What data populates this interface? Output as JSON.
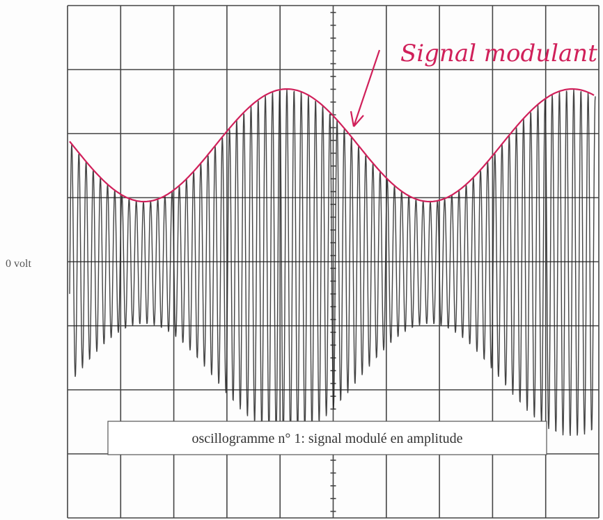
{
  "annotation": "Signal modulant",
  "axis_label": "0 volt",
  "caption": "oscillogramme n° 1: signal modulé en amplitude"
}
